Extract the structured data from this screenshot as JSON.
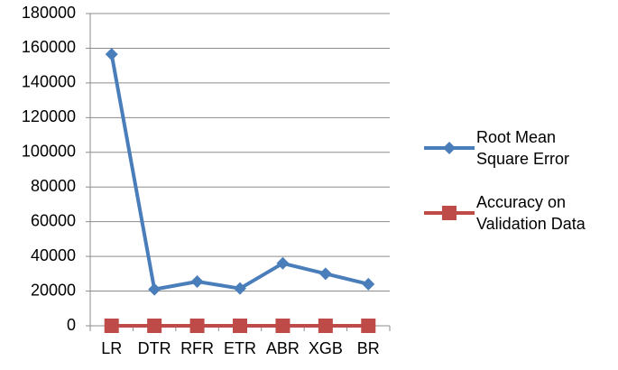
{
  "chart_data": {
    "type": "line",
    "categories": [
      "LR",
      "DTR",
      "RFR",
      "ETR",
      "ABR",
      "XGB",
      "BR"
    ],
    "series": [
      {
        "name": "Root Mean Square Error",
        "color": "#4a7ebb",
        "marker": "diamond",
        "values": [
          156500,
          21000,
          25500,
          21500,
          36000,
          30000,
          24000
        ]
      },
      {
        "name": "Accuracy on Validation Data",
        "color": "#be4b48",
        "marker": "square",
        "values": [
          0,
          0,
          0,
          0,
          0,
          0,
          0
        ]
      }
    ],
    "ylim": [
      0,
      180000
    ],
    "yticks": [
      0,
      20000,
      40000,
      60000,
      80000,
      100000,
      120000,
      140000,
      160000,
      180000
    ],
    "grid": true
  }
}
